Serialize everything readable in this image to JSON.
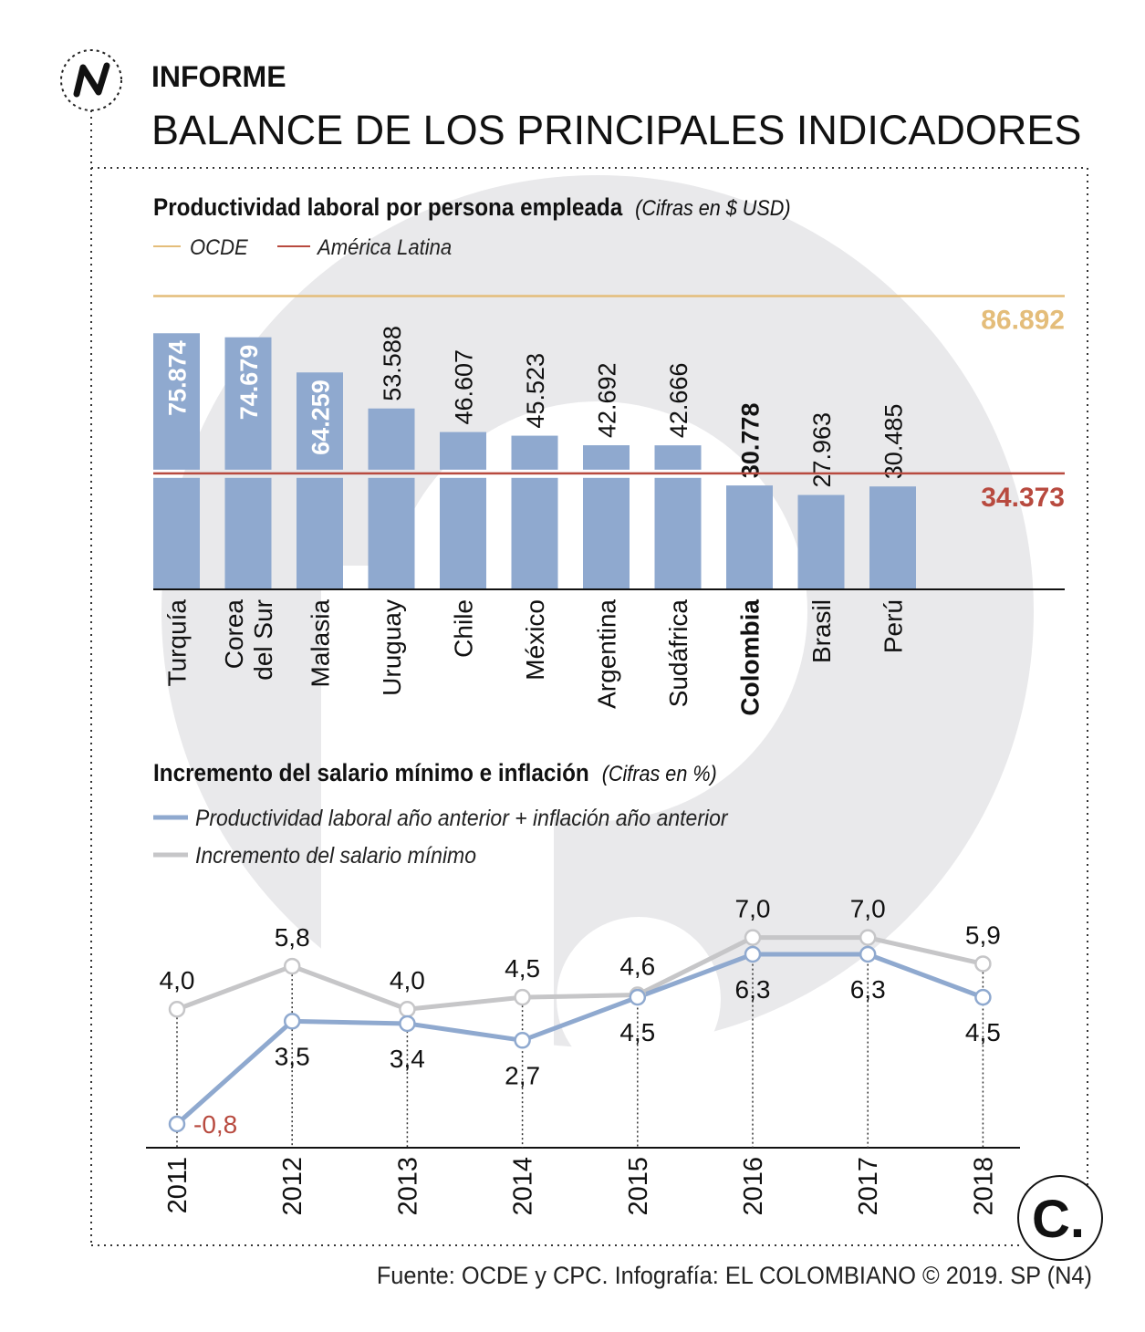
{
  "header": {
    "section": "INFORME",
    "title": "BALANCE DE LOS PRINCIPALES INDICADORES"
  },
  "colors": {
    "bar": "#8fa9cf",
    "ocde": "#e4bd7a",
    "latam": "#b84a3f",
    "series_blue": "#8fa9cf",
    "series_gray": "#c6c6c8",
    "negative_label": "#b84a3f",
    "watermark": "#e9e9eb"
  },
  "chart_data": [
    {
      "type": "bar",
      "title": "Productividad laboral por persona empleada",
      "subtitle": "(Cifras en $ USD)",
      "categories": [
        "Turquía",
        "Corea del Sur",
        "Malasia",
        "Uruguay",
        "Chile",
        "México",
        "Argentina",
        "Sudáfrica",
        "Colombia",
        "Brasil",
        "Perú"
      ],
      "category_lines": [
        [
          "Turquía"
        ],
        [
          "Corea",
          "del Sur"
        ],
        [
          "Malasia"
        ],
        [
          "Uruguay"
        ],
        [
          "Chile"
        ],
        [
          "México"
        ],
        [
          "Argentina"
        ],
        [
          "Sudáfrica"
        ],
        [
          "Colombia"
        ],
        [
          "Brasil"
        ],
        [
          "Perú"
        ]
      ],
      "values": [
        75874,
        74679,
        64259,
        53588,
        46607,
        45523,
        42692,
        42666,
        30778,
        27963,
        30485
      ],
      "labels": [
        "75.874",
        "74.679",
        "64.259",
        "53.588",
        "46.607",
        "45.523",
        "42.692",
        "42.666",
        "30.778",
        "27.963",
        "30.485"
      ],
      "highlight": "Colombia",
      "reference_lines": [
        {
          "name": "OCDE",
          "value": 86892,
          "label": "86.892"
        },
        {
          "name": "América Latina",
          "value": 34373,
          "label": "34.373"
        }
      ],
      "legend": [
        "OCDE",
        "América Latina"
      ],
      "ylim": [
        0,
        90000
      ]
    },
    {
      "type": "line",
      "title": "Incremento del salario mínimo e inflación",
      "subtitle": "(Cifras en %)",
      "x": [
        "2011",
        "2012",
        "2013",
        "2014",
        "2015",
        "2016",
        "2017",
        "2018"
      ],
      "series": [
        {
          "name": "Productividad laboral año anterior + inflación año anterior",
          "values": [
            -0.8,
            3.5,
            3.4,
            2.7,
            4.5,
            6.3,
            6.3,
            4.5
          ],
          "labels": [
            "-0,8",
            "3,5",
            "3,4",
            "2,7",
            "4,5",
            "6,3",
            "6,3",
            "4,5"
          ]
        },
        {
          "name": "Incremento del salario mínimo",
          "values": [
            4.0,
            5.8,
            4.0,
            4.5,
            4.6,
            7.0,
            7.0,
            5.9
          ],
          "labels": [
            "4,0",
            "5,8",
            "4,0",
            "4,5",
            "4,6",
            "7,0",
            "7,0",
            "5,9"
          ]
        }
      ],
      "ylim": [
        -1.1,
        7.0
      ]
    }
  ],
  "footer": {
    "source": "Fuente: OCDE y CPC. Infografía: EL COLOMBIANO © 2019. SP (N4)",
    "logo_letter": "C."
  }
}
